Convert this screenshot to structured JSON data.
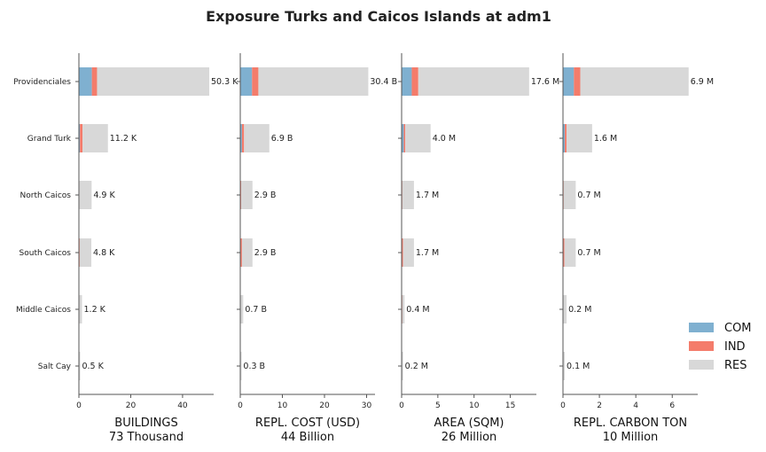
{
  "title": "Exposure Turks and Caicos Islands at adm1",
  "chart_data": {
    "type": "bar",
    "title": "Exposure Turks and Caicos Islands at adm1",
    "categories": [
      "Providenciales",
      "Grand Turk",
      "North Caicos",
      "South Caicos",
      "Middle Caicos",
      "Salt Cay"
    ],
    "legend": {
      "placement": "right",
      "entries": [
        {
          "name": "COM",
          "color": "#7fb0d0"
        },
        {
          "name": "IND",
          "color": "#f47c6b"
        },
        {
          "name": "RES",
          "color": "#d8d8d8"
        }
      ]
    },
    "panels": [
      {
        "xlabel": "BUILDINGS",
        "total": "73 Thousand",
        "xlim": [
          0,
          52
        ],
        "ticks": [
          0,
          20,
          40
        ],
        "tick_labels": [
          "0",
          "20",
          "40"
        ],
        "series": [
          {
            "name": "COM",
            "values": [
              5.0,
              0.4,
              0.1,
              0.1,
              0.1,
              0.05
            ]
          },
          {
            "name": "IND",
            "values": [
              2.0,
              1.0,
              0.1,
              0.2,
              0.1,
              0.05
            ]
          },
          {
            "name": "RES",
            "values": [
              43.3,
              9.8,
              4.7,
              4.5,
              1.0,
              0.4
            ]
          }
        ],
        "totals": [
          50.3,
          11.2,
          4.9,
          4.8,
          1.2,
          0.5
        ],
        "value_labels": [
          "50.3 K",
          "11.2 K",
          "4.9 K",
          "4.8 K",
          "1.2 K",
          "0.5 K"
        ]
      },
      {
        "xlabel": "REPL. COST (USD)",
        "total": "44 Billion",
        "xlim": [
          0,
          32
        ],
        "ticks": [
          0,
          10,
          20,
          30
        ],
        "tick_labels": [
          "0",
          "10",
          "20",
          "30"
        ],
        "series": [
          {
            "name": "COM",
            "values": [
              2.8,
              0.4,
              0.1,
              0.1,
              0.05,
              0.05
            ]
          },
          {
            "name": "IND",
            "values": [
              1.5,
              0.5,
              0.1,
              0.3,
              0.05,
              0.05
            ]
          },
          {
            "name": "RES",
            "values": [
              26.1,
              6.0,
              2.7,
              2.5,
              0.6,
              0.2
            ]
          }
        ],
        "totals": [
          30.4,
          6.9,
          2.9,
          2.9,
          0.7,
          0.3
        ],
        "value_labels": [
          "30.4 B",
          "6.9 B",
          "2.9 B",
          "2.9 B",
          "0.7 B",
          "0.3 B"
        ]
      },
      {
        "xlabel": "AREA (SQM)",
        "total": "26 Million",
        "xlim": [
          0,
          18.6
        ],
        "ticks": [
          0,
          5,
          10,
          15
        ],
        "tick_labels": [
          "0",
          "5",
          "10",
          "15"
        ],
        "series": [
          {
            "name": "COM",
            "values": [
              1.4,
              0.3,
              0.05,
              0.05,
              0.05,
              0.02
            ]
          },
          {
            "name": "IND",
            "values": [
              0.9,
              0.2,
              0.05,
              0.15,
              0.05,
              0.02
            ]
          },
          {
            "name": "RES",
            "values": [
              15.3,
              3.5,
              1.6,
              1.5,
              0.3,
              0.16
            ]
          }
        ],
        "totals": [
          17.6,
          4.0,
          1.7,
          1.7,
          0.4,
          0.2
        ],
        "value_labels": [
          "17.6 M",
          "4.0 M",
          "1.7 M",
          "1.7 M",
          "0.4 M",
          "0.2 M"
        ]
      },
      {
        "xlabel": "REPL. CARBON TON",
        "total": "10 Million",
        "xlim": [
          0,
          7.4
        ],
        "ticks": [
          0,
          2,
          4,
          6
        ],
        "tick_labels": [
          "0",
          "2",
          "4",
          "6"
        ],
        "series": [
          {
            "name": "COM",
            "values": [
              0.6,
              0.1,
              0.02,
              0.02,
              0.01,
              0.01
            ]
          },
          {
            "name": "IND",
            "values": [
              0.35,
              0.1,
              0.02,
              0.06,
              0.01,
              0.01
            ]
          },
          {
            "name": "RES",
            "values": [
              5.95,
              1.4,
              0.66,
              0.62,
              0.18,
              0.08
            ]
          }
        ],
        "totals": [
          6.9,
          1.6,
          0.7,
          0.7,
          0.2,
          0.1
        ],
        "value_labels": [
          "6.9 M",
          "1.6 M",
          "0.7 M",
          "0.7 M",
          "0.2 M",
          "0.1 M"
        ]
      }
    ]
  }
}
